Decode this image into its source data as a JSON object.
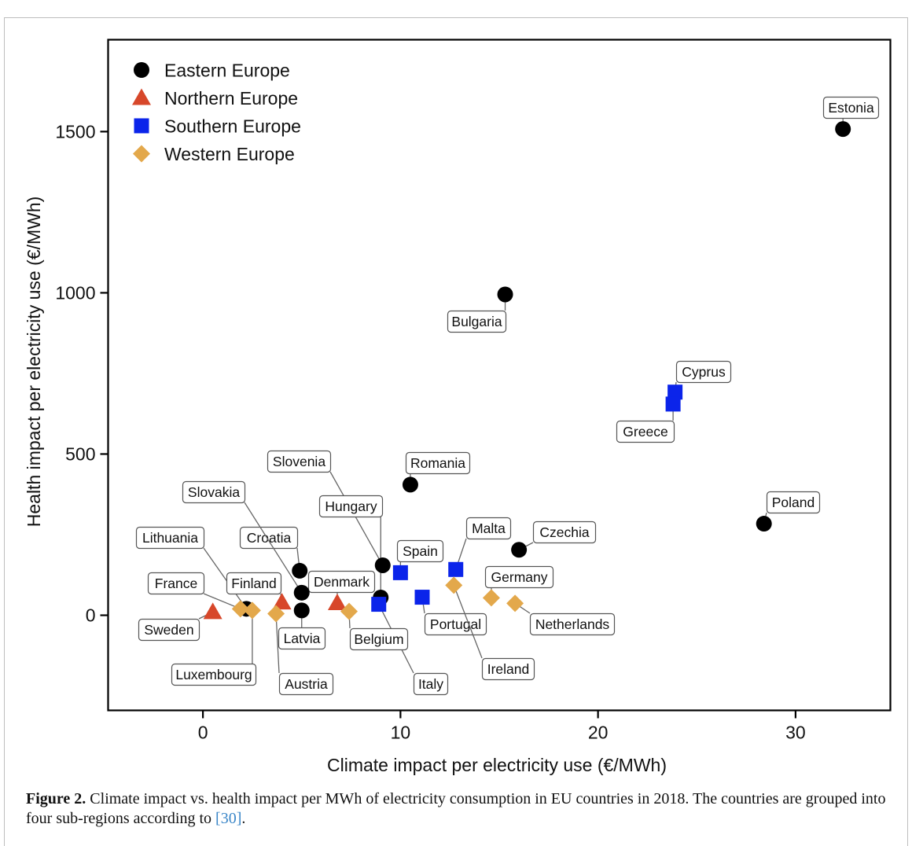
{
  "chart_data": {
    "type": "scatter",
    "title": "",
    "xlabel": "Climate impact per electricity use (€/MWh)",
    "ylabel": "Health impact per electricity use (€/MWh)",
    "xlim": [
      -4.8,
      34.8
    ],
    "ylim": [
      -295,
      1785
    ],
    "xticks": [
      0,
      10,
      20,
      30
    ],
    "yticks": [
      0,
      500,
      1000,
      1500
    ],
    "grid": false,
    "legend_position": "top-left",
    "series": [
      {
        "name": "Eastern Europe",
        "marker": "circle",
        "color": "#000000",
        "points": [
          {
            "label": "Estonia",
            "x": 32.4,
            "y": 1508
          },
          {
            "label": "Bulgaria",
            "x": 15.3,
            "y": 995
          },
          {
            "label": "Romania",
            "x": 10.5,
            "y": 405
          },
          {
            "label": "Poland",
            "x": 28.4,
            "y": 284
          },
          {
            "label": "Czechia",
            "x": 16.0,
            "y": 203
          },
          {
            "label": "Slovenia",
            "x": 9.1,
            "y": 155
          },
          {
            "label": "Hungary",
            "x": 9.0,
            "y": 55
          },
          {
            "label": "Croatia",
            "x": 4.9,
            "y": 138
          },
          {
            "label": "Slovakia",
            "x": 5.0,
            "y": 70
          },
          {
            "label": "Latvia",
            "x": 5.0,
            "y": 15
          },
          {
            "label": "Lithuania",
            "x": 2.2,
            "y": 20
          }
        ]
      },
      {
        "name": "Northern Europe",
        "marker": "triangle",
        "color": "#d7472a",
        "points": [
          {
            "label": "Sweden",
            "x": 0.5,
            "y": 10
          },
          {
            "label": "Finland",
            "x": 4.0,
            "y": 40
          },
          {
            "label": "Denmark",
            "x": 6.8,
            "y": 38
          }
        ]
      },
      {
        "name": "Southern Europe",
        "marker": "square",
        "color": "#0b24ea",
        "points": [
          {
            "label": "Cyprus",
            "x": 23.9,
            "y": 692
          },
          {
            "label": "Greece",
            "x": 23.8,
            "y": 655
          },
          {
            "label": "Malta",
            "x": 12.8,
            "y": 142
          },
          {
            "label": "Spain",
            "x": 10.0,
            "y": 132
          },
          {
            "label": "Portugal",
            "x": 11.1,
            "y": 56
          },
          {
            "label": "Italy",
            "x": 8.9,
            "y": 34
          }
        ]
      },
      {
        "name": "Western Europe",
        "marker": "diamond",
        "color": "#e3a84b",
        "points": [
          {
            "label": "Ireland",
            "x": 12.7,
            "y": 93
          },
          {
            "label": "Germany",
            "x": 14.6,
            "y": 54
          },
          {
            "label": "Netherlands",
            "x": 15.8,
            "y": 37
          },
          {
            "label": "Belgium",
            "x": 7.4,
            "y": 12
          },
          {
            "label": "Austria",
            "x": 3.7,
            "y": 5
          },
          {
            "label": "France",
            "x": 1.9,
            "y": 20
          },
          {
            "label": "Luxembourg",
            "x": 2.5,
            "y": 15
          }
        ]
      }
    ]
  },
  "caption": {
    "label": "Figure 2.",
    "text_before_ref": " Climate impact vs. health impact per MWh of electricity consumption in EU countries in 2018. The countries are grouped into four sub-regions according to ",
    "ref": "[30]",
    "text_after_ref": "."
  }
}
